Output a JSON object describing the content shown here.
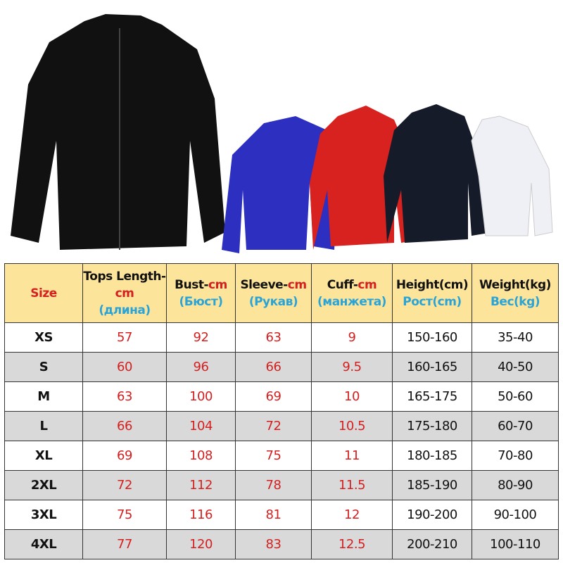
{
  "colors": {
    "header_bg": "#fde49b",
    "alt_row_bg": "#d9d9d9",
    "accent_red": "#d42020",
    "accent_blue": "#2aa3d6"
  },
  "product_images": {
    "jacket_colors": [
      "#111111",
      "#2c2fc0",
      "#d8221f",
      "#161b2a",
      "#f4f4f8"
    ]
  },
  "table": {
    "headers": [
      {
        "main": "Size",
        "unit": "",
        "ru": ""
      },
      {
        "main": "Tops Length-",
        "unit": "cm",
        "ru": "(длина)"
      },
      {
        "main": "Bust-",
        "unit": "cm",
        "ru": "(Бюст)"
      },
      {
        "main": "Sleeve-",
        "unit": "cm",
        "ru": "(Рукав)"
      },
      {
        "main": "Cuff-",
        "unit": "cm",
        "ru": "(манжета)"
      },
      {
        "main": "Height(cm)",
        "unit": "",
        "ru": "Рост(cm)"
      },
      {
        "main": "Weight(kg)",
        "unit": "",
        "ru": "Вес(kg)"
      }
    ],
    "rows": [
      [
        "XS",
        "57",
        "92",
        "63",
        "9",
        "150-160",
        "35-40"
      ],
      [
        "S",
        "60",
        "96",
        "66",
        "9.5",
        "160-165",
        "40-50"
      ],
      [
        "M",
        "63",
        "100",
        "69",
        "10",
        "165-175",
        "50-60"
      ],
      [
        "L",
        "66",
        "104",
        "72",
        "10.5",
        "175-180",
        "60-70"
      ],
      [
        "XL",
        "69",
        "108",
        "75",
        "11",
        "180-185",
        "70-80"
      ],
      [
        "2XL",
        "72",
        "112",
        "78",
        "11.5",
        "185-190",
        "80-90"
      ],
      [
        "3XL",
        "75",
        "116",
        "81",
        "12",
        "190-200",
        "90-100"
      ],
      [
        "4XL",
        "77",
        "120",
        "83",
        "12.5",
        "200-210",
        "100-110"
      ]
    ]
  }
}
